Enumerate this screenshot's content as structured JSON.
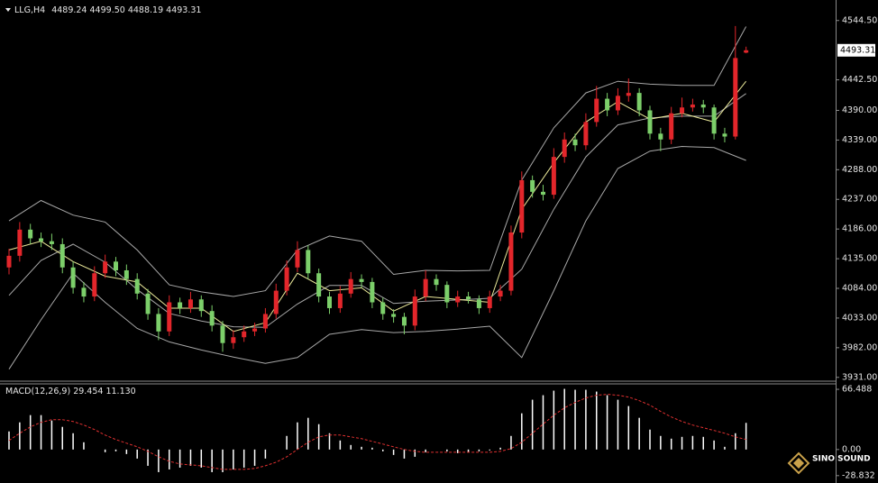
{
  "chart_data": [
    {
      "type": "candlestick",
      "symbol": "LLG,H4",
      "last_labels": {
        "open": "4489.24",
        "high": "4499.50",
        "low": "4488.19",
        "close": "4493.31"
      },
      "up_color": "#e3262b",
      "down_color": "#7ccf6a",
      "open": [
        4120,
        4140,
        4185,
        4170,
        4165,
        4160,
        4120,
        4085,
        4070,
        4110,
        4130,
        4115,
        4100,
        4075,
        4040,
        4010,
        4060,
        4050,
        4065,
        4045,
        4020,
        3990,
        4000,
        4010,
        4015,
        4040,
        4080,
        4120,
        4150,
        4110,
        4070,
        4050,
        4075,
        4100,
        4095,
        4060,
        4040,
        4035,
        4020,
        4070,
        4100,
        4090,
        4060,
        4070,
        4065,
        4050,
        4070,
        4080,
        4180,
        4270,
        4250,
        4245,
        4310,
        4340,
        4330,
        4370,
        4410,
        4390,
        4415,
        4420,
        4390,
        4350,
        4340,
        4385,
        4395,
        4400,
        4395,
        4350,
        4345,
        4489.24
      ],
      "high": [
        4152,
        4198,
        4195,
        4180,
        4178,
        4170,
        4130,
        4095,
        4122,
        4142,
        4138,
        4125,
        4110,
        4083,
        4050,
        4072,
        4068,
        4078,
        4072,
        4055,
        4028,
        4012,
        4020,
        4025,
        4050,
        4092,
        4132,
        4165,
        4158,
        4118,
        4078,
        4088,
        4112,
        4108,
        4102,
        4068,
        4048,
        4042,
        4082,
        4115,
        4108,
        4096,
        4080,
        4078,
        4072,
        4080,
        4090,
        4192,
        4285,
        4278,
        4262,
        4325,
        4352,
        4350,
        4385,
        4432,
        4420,
        4428,
        4445,
        4428,
        4398,
        4360,
        4396,
        4412,
        4410,
        4408,
        4400,
        4360,
        4535,
        4499.5
      ],
      "low": [
        4108,
        4130,
        4160,
        4155,
        4150,
        4110,
        4075,
        4060,
        4062,
        4102,
        4105,
        4090,
        4065,
        4030,
        3995,
        4002,
        4040,
        4042,
        4035,
        4010,
        3975,
        3980,
        3992,
        4002,
        4008,
        4032,
        4072,
        4112,
        4100,
        4060,
        4040,
        4042,
        4068,
        4085,
        4050,
        4030,
        4025,
        4005,
        4012,
        4062,
        4080,
        4050,
        4052,
        4058,
        4040,
        4042,
        4062,
        4072,
        4170,
        4240,
        4235,
        4238,
        4300,
        4320,
        4322,
        4362,
        4380,
        4382,
        4405,
        4380,
        4340,
        4320,
        4332,
        4378,
        4388,
        4385,
        4340,
        4335,
        4340,
        4488.19
      ],
      "close": [
        4140,
        4185,
        4170,
        4165,
        4160,
        4120,
        4085,
        4070,
        4110,
        4130,
        4115,
        4100,
        4075,
        4040,
        4010,
        4060,
        4050,
        4065,
        4045,
        4020,
        3990,
        4000,
        4010,
        4015,
        4040,
        4080,
        4120,
        4150,
        4110,
        4070,
        4050,
        4075,
        4100,
        4095,
        4060,
        4040,
        4035,
        4020,
        4070,
        4100,
        4090,
        4060,
        4070,
        4065,
        4050,
        4070,
        4080,
        4180,
        4270,
        4250,
        4245,
        4310,
        4340,
        4330,
        4370,
        4410,
        4390,
        4415,
        4420,
        4390,
        4350,
        4340,
        4385,
        4395,
        4400,
        4395,
        4350,
        4345,
        4480,
        4493.31
      ],
      "overlay_x": [
        0,
        3,
        6,
        9,
        12,
        15,
        18,
        21,
        24,
        27,
        30,
        33,
        36,
        39,
        42,
        45,
        48,
        51,
        54,
        57,
        60,
        63,
        66,
        69
      ],
      "overlays": [
        {
          "color": "#a8a8a8",
          "values": [
            4200,
            4235,
            4210,
            4198,
            4150,
            4090,
            4078,
            4070,
            4080,
            4150,
            4174,
            4165,
            4108,
            4115,
            4114,
            4115,
            4270,
            4360,
            4420,
            4440,
            4435,
            4433,
            4433,
            4534
          ]
        },
        {
          "color": "#a8a8a8",
          "values": [
            4072,
            4132,
            4160,
            4129,
            4082,
            4041,
            4028,
            4018,
            4017,
            4057,
            4089,
            4089,
            4058,
            4062,
            4064,
            4067,
            4117,
            4220,
            4310,
            4365,
            4377,
            4380,
            4380,
            4419
          ]
        },
        {
          "color": "#a8a8a8",
          "values": [
            3945,
            4030,
            4110,
            4060,
            4015,
            3992,
            3978,
            3966,
            3955,
            3965,
            4005,
            4013,
            4008,
            4010,
            4014,
            4019,
            3965,
            4080,
            4200,
            4290,
            4320,
            4328,
            4326,
            4304
          ]
        },
        {
          "color": "#ecea9a",
          "values": [
            4150,
            4165,
            4130,
            4105,
            4095,
            4050,
            4050,
            4010,
            4025,
            4110,
            4080,
            4085,
            4045,
            4070,
            4065,
            4060,
            4220,
            4300,
            4370,
            4405,
            4375,
            4385,
            4370,
            4440
          ]
        }
      ],
      "ylim": [
        3926,
        4572
      ],
      "yticks": [
        {
          "value": 4544.5,
          "label": "4544.50"
        },
        {
          "value": 4442.5,
          "label": "4442.50"
        },
        {
          "value": 4390,
          "label": "4390.00"
        },
        {
          "value": 4339,
          "label": "4339.00"
        },
        {
          "value": 4288,
          "label": "4288.00"
        },
        {
          "value": 4237,
          "label": "4237.00"
        },
        {
          "value": 4186,
          "label": "4186.00"
        },
        {
          "value": 4135,
          "label": "4135.00"
        },
        {
          "value": 4084,
          "label": "4084.00"
        },
        {
          "value": 4033,
          "label": "4033.00"
        },
        {
          "value": 3982,
          "label": "3982.00"
        },
        {
          "value": 3931,
          "label": "3931.00"
        }
      ]
    },
    {
      "type": "macd",
      "title": "MACD(12,26,9)",
      "signal_label": "11.130",
      "color": "#ffffff",
      "values": [
        20,
        30,
        38,
        38,
        32,
        25,
        18,
        8,
        0,
        -3,
        -2,
        -5,
        -10,
        -18,
        -25,
        -22,
        -20,
        -18,
        -20,
        -25,
        -25,
        -22,
        -20,
        -18,
        -10,
        0,
        15,
        30,
        35,
        28,
        18,
        10,
        5,
        3,
        2,
        -2,
        -6,
        -10,
        -8,
        -3,
        0,
        -2,
        -4,
        -3,
        -2,
        -1,
        2,
        15,
        40,
        55,
        60,
        65,
        67,
        66,
        66,
        64,
        60,
        55,
        48,
        35,
        22,
        15,
        12,
        14,
        15,
        14,
        10,
        3,
        18,
        29.454
      ],
      "signal": {
        "color": "#e03030",
        "values": [
          10,
          18,
          25,
          30,
          33,
          33,
          31,
          27,
          22,
          16,
          11,
          7,
          3,
          -2,
          -8,
          -13,
          -16,
          -17,
          -18,
          -20,
          -22,
          -22,
          -22,
          -21,
          -18,
          -14,
          -8,
          0,
          8,
          14,
          16,
          16,
          14,
          12,
          9,
          6,
          3,
          0,
          -2,
          -3,
          -3,
          -3,
          -3,
          -3,
          -3,
          -3,
          -2,
          1,
          8,
          18,
          28,
          38,
          46,
          52,
          57,
          60,
          61,
          60,
          58,
          54,
          49,
          42,
          36,
          31,
          27,
          24,
          21,
          18,
          14,
          11.13
        ]
      },
      "ylim": [
        -33,
        73.5
      ],
      "yticks": [
        66.488,
        {
          "value": 0,
          "label": "0.00"
        },
        -28.832
      ]
    }
  ],
  "logo": "SINO SOUND"
}
